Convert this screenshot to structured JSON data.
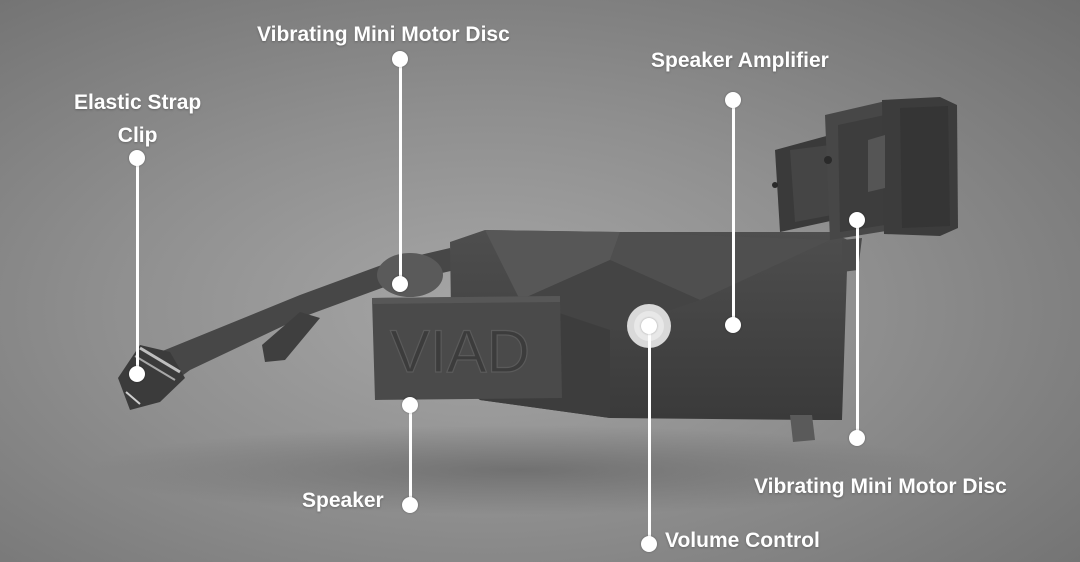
{
  "product": {
    "brand_text": "VIAD"
  },
  "callouts": {
    "motor_top": "Vibrating Mini Motor Disc",
    "amplifier": "Speaker Amplifier",
    "strap_line1": "Elastic Strap",
    "strap_line2": "Clip",
    "speaker": "Speaker",
    "volume": "Volume Control",
    "motor_bottom": "Vibrating Mini Motor Disc"
  },
  "colors": {
    "background": "#9a9a9a",
    "device": "#464646",
    "label": "#ffffff"
  }
}
